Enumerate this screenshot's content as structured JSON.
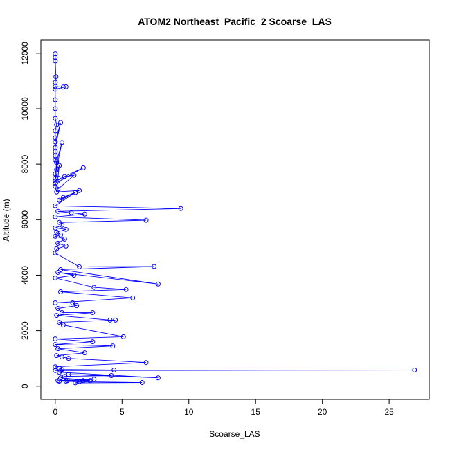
{
  "chart_data": {
    "type": "line",
    "title": "ATOM2 Northeast_Pacific_2 Scoarse_LAS",
    "xlabel": "Scoarse_LAS",
    "ylabel": "Altitude (m)",
    "xlim": [
      -1.08,
      28.0
    ],
    "ylim": [
      -480,
      12470
    ],
    "xticks": [
      0,
      5,
      10,
      15,
      20,
      25
    ],
    "yticks": [
      0,
      2000,
      4000,
      6000,
      8000,
      10000,
      12000
    ],
    "grid": false,
    "legend": "none",
    "series_color": "#0000ff",
    "marker": "open-circle",
    "series": [
      {
        "x": [
          0.0,
          0.0,
          0.0,
          0.05,
          0.0,
          0.0,
          0.6,
          0.8,
          0.0,
          0.0,
          0.0,
          0.0,
          0.1,
          0.0,
          0.0,
          0.0,
          0.4,
          0.0,
          0.0,
          0.0,
          0.0,
          0.1,
          0.1,
          0.0,
          0.5,
          0.1,
          0.0,
          0.3,
          0.2,
          0.0,
          2.1,
          0.0,
          0.2,
          1.4,
          0.7,
          0.0,
          0.1,
          1.8,
          0.6,
          0.3,
          1.5,
          0.0,
          9.4,
          0.2,
          1.2,
          2.2,
          0.0,
          6.8,
          0.3,
          0.5,
          0.0,
          0.8,
          0.1,
          0.4,
          0.0,
          0.7,
          0.2,
          0.8,
          0.1,
          0.0,
          1.8,
          7.4,
          0.4,
          7.7,
          0.2,
          1.4,
          0.0,
          2.9,
          5.3,
          0.4,
          5.8,
          0.0,
          1.3,
          1.6,
          0.2,
          0.5,
          2.8,
          0.1,
          4.1,
          4.5,
          0.3,
          0.6,
          5.1,
          0.0,
          2.8,
          0.0,
          4.3,
          0.2,
          2.2,
          0.1,
          0.5,
          1.0,
          6.8,
          0.0,
          0.3,
          0.5,
          4.4,
          26.9,
          0.0,
          0.4,
          0.3,
          7.7,
          1.0,
          4.2,
          0.7,
          0.4,
          2.6,
          0.9,
          0.3,
          1.8,
          6.5,
          1.5,
          2.1,
          2.9,
          0.2,
          0.8
        ],
        "y": [
          11980,
          11850,
          11720,
          11150,
          10950,
          10800,
          10780,
          10790,
          10700,
          10320,
          10000,
          9650,
          9420,
          9200,
          8950,
          8800,
          9500,
          8600,
          8450,
          8300,
          8150,
          8050,
          7800,
          7650,
          8780,
          8100,
          7500,
          7950,
          7500,
          7400,
          7870,
          7300,
          7100,
          7600,
          7550,
          7200,
          7000,
          7050,
          6800,
          6700,
          6980,
          6500,
          6400,
          6300,
          6250,
          6200,
          6100,
          5980,
          5900,
          5800,
          5700,
          5650,
          5550,
          5450,
          5400,
          5300,
          5150,
          5050,
          4950,
          4800,
          4300,
          4310,
          4200,
          3680,
          4100,
          4000,
          3900,
          3560,
          3480,
          3400,
          3180,
          3000,
          3000,
          2900,
          2800,
          2650,
          2650,
          2550,
          2380,
          2380,
          2300,
          2200,
          1780,
          1700,
          1600,
          1500,
          1450,
          1350,
          1200,
          1100,
          1050,
          1000,
          850,
          700,
          650,
          600,
          580,
          580,
          560,
          560,
          500,
          300,
          420,
          380,
          350,
          300,
          200,
          200,
          180,
          160,
          130,
          120,
          200,
          250,
          200,
          180
        ]
      }
    ]
  }
}
